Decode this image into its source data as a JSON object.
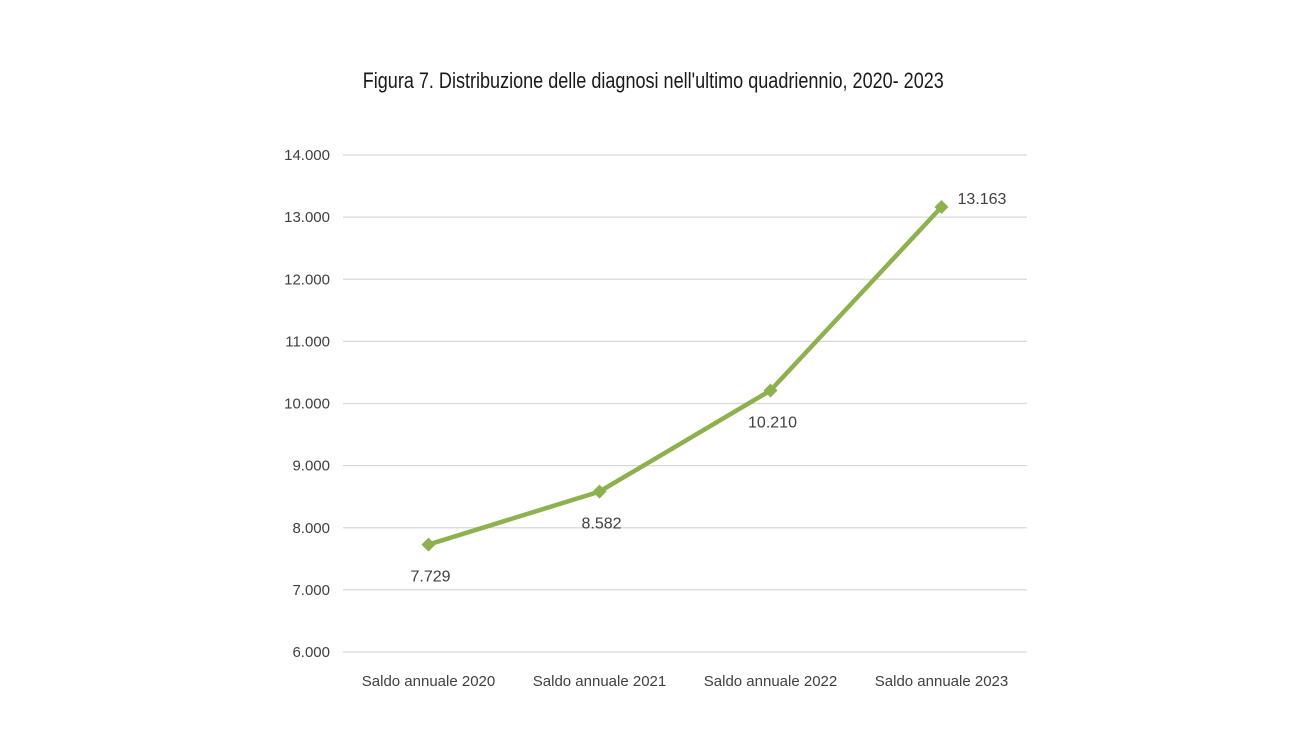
{
  "chart_data": {
    "type": "line",
    "title": "Figura 7. Distribuzione delle diagnosi nell'ultimo quadriennio, 2020- 2023",
    "xlabel": "",
    "ylabel": "",
    "categories": [
      "Saldo annuale 2020",
      "Saldo annuale 2021",
      "Saldo annuale 2022",
      "Saldo annuale 2023"
    ],
    "values": [
      7729,
      8582,
      10210,
      13163
    ],
    "data_labels": [
      "7.729",
      "8.582",
      "10.210",
      "13.163"
    ],
    "ylim": [
      6000,
      14000
    ],
    "yticks": [
      6000,
      7000,
      8000,
      9000,
      10000,
      11000,
      12000,
      13000,
      14000
    ],
    "ytick_labels": [
      "6.000",
      "7.000",
      "8.000",
      "9.000",
      "10.000",
      "11.000",
      "12.000",
      "13.000",
      "14.000"
    ],
    "grid": true,
    "legend": "none",
    "marker": "diamond",
    "colors": {
      "line": "#8db14f",
      "grid": "#d9d9d9",
      "text": "#404040"
    }
  }
}
